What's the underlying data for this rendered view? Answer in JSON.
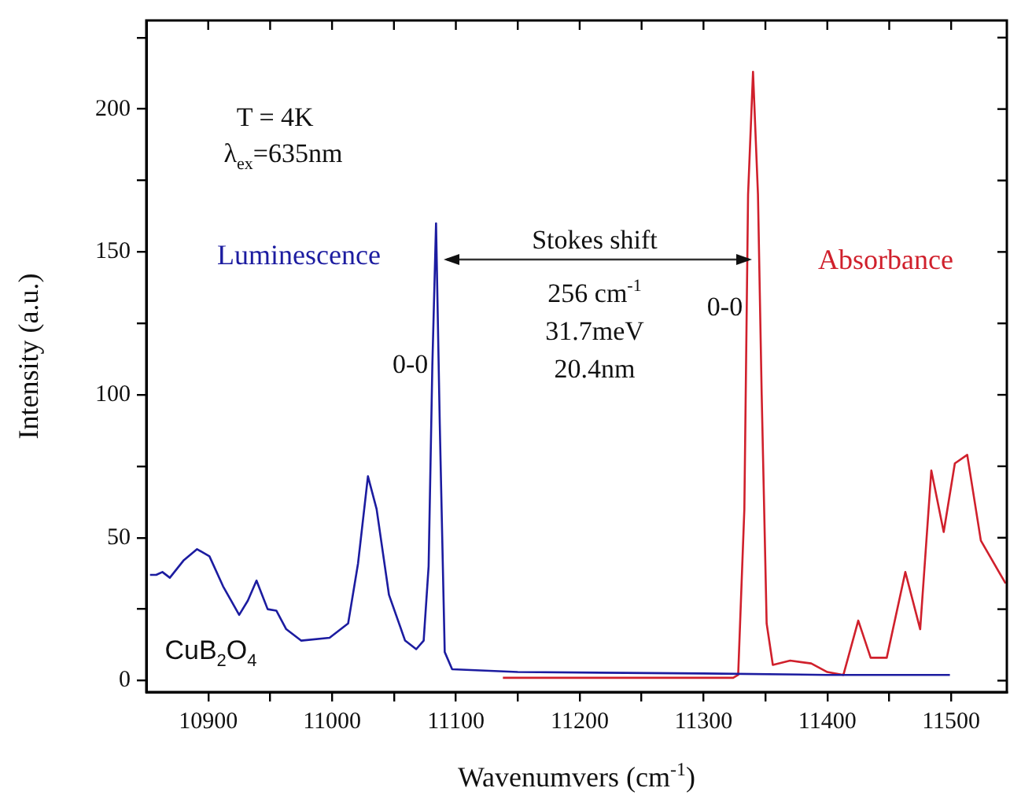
{
  "chart_data": {
    "type": "line",
    "xlabel": "Wavenumvers (cm$^{-1}$)",
    "ylabel": "Intensity (a.u.)",
    "xlim": [
      10850,
      11545
    ],
    "ylim": [
      -4,
      231
    ],
    "xticks": [
      10900,
      {
        "value": 10950,
        "label": null
      },
      11000,
      {
        "value": 11050,
        "label": null
      },
      11100,
      {
        "value": 11150,
        "label": null
      },
      11200,
      {
        "value": 11250,
        "label": null
      },
      11300,
      {
        "value": 11350,
        "label": null
      },
      11400,
      {
        "value": 11450,
        "label": null
      },
      11500
    ],
    "yticks": [
      0,
      {
        "value": 25,
        "label": null
      },
      50,
      {
        "value": 75,
        "label": null
      },
      100,
      {
        "value": 125,
        "label": null
      },
      150,
      {
        "value": 175,
        "label": null
      },
      200,
      {
        "value": 225,
        "label": null
      }
    ],
    "grid": false,
    "legend": false,
    "marker": "none",
    "line_style": "solid",
    "series": [
      {
        "name": "Luminescence",
        "color": "#1c1ca0",
        "x": [
          10853,
          10858,
          10863,
          10869,
          10880,
          10891,
          10901,
          10912,
          10925,
          10932,
          10939,
          10948,
          10955,
          10963,
          10975,
          10998,
          11013,
          11021,
          11029,
          11036,
          11046,
          11059,
          11068,
          11074,
          11078,
          11081,
          11084,
          11087,
          11091,
          11097,
          11150,
          11300,
          11400,
          11499
        ],
        "values": [
          37,
          37,
          38,
          36,
          42,
          46,
          43.5,
          33,
          23,
          28,
          35,
          25,
          24.5,
          18,
          14,
          15,
          20,
          41,
          71.5,
          60,
          30,
          14,
          11,
          14,
          40,
          110,
          160,
          90,
          10,
          4,
          3,
          2.5,
          2,
          2
        ]
      },
      {
        "name": "Absorbance",
        "color": "#d0202c",
        "x": [
          11138,
          11200,
          11300,
          11324,
          11328,
          11333,
          11336,
          11340,
          11344,
          11347,
          11351,
          11356,
          11370,
          11387,
          11400,
          11413,
          11425,
          11435,
          11448,
          11463,
          11475,
          11484,
          11494,
          11503,
          11513,
          11524,
          11544
        ],
        "values": [
          1,
          1,
          1,
          1,
          2,
          60,
          170,
          213,
          170,
          100,
          20,
          5.5,
          7,
          6,
          3,
          2,
          21,
          8,
          8,
          38,
          18,
          73.5,
          52,
          76,
          79,
          49,
          34
        ]
      }
    ],
    "annotations": [
      "T = 4K",
      "λ$_{ex}$=635nm",
      "Stokes shift",
      "256 cm$^{-1}$",
      "31.7meV",
      "20.4nm",
      "CuB$_{2}$O$_{4}$",
      {
        "text": "0-0",
        "x": 11084,
        "y": 111
      },
      {
        "text": "0-0",
        "x": 11338,
        "y": 131
      }
    ]
  }
}
